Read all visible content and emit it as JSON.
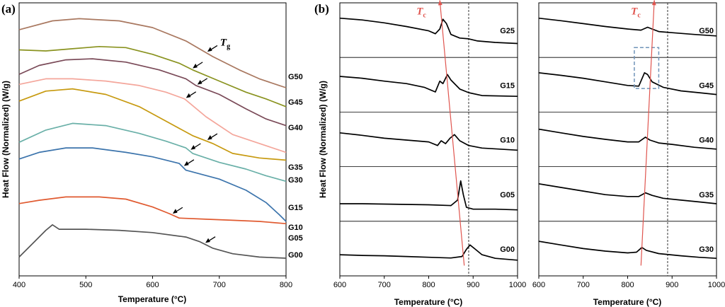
{
  "panel_a_label": "(a)",
  "panel_b_label": "(b)",
  "panel_b_ylabel": "Heat Flow (Normalized) (W/g)",
  "chart_data": [
    {
      "type": "line",
      "title": "(a)",
      "xlabel": "Temperature (°C)",
      "ylabel": "Heat Flow (Normalized) (W/g)",
      "xlim": [
        400,
        800
      ],
      "xticks": [
        400,
        500,
        600,
        700,
        800
      ],
      "ylim": [
        0,
        10
      ],
      "yticks_visible": false,
      "series": [
        {
          "name": "G50",
          "color": "#a97860",
          "tg_annotation": "T",
          "tg_subscript": "g",
          "tg_x": 680,
          "points": [
            [
              400,
              8.5
            ],
            [
              450,
              8.9
            ],
            [
              490,
              9.0
            ],
            [
              550,
              8.9
            ],
            [
              600,
              8.6
            ],
            [
              650,
              8.0
            ],
            [
              690,
              7.3
            ],
            [
              730,
              6.7
            ],
            [
              760,
              6.3
            ],
            [
              790,
              6.0
            ],
            [
              800,
              5.9
            ]
          ]
        },
        {
          "name": "G45",
          "color": "#8a9320",
          "tg_x": 658,
          "points": [
            [
              400,
              7.6
            ],
            [
              440,
              7.55
            ],
            [
              480,
              7.65
            ],
            [
              520,
              7.75
            ],
            [
              560,
              7.7
            ],
            [
              600,
              7.4
            ],
            [
              640,
              7.0
            ],
            [
              660,
              6.7
            ],
            [
              700,
              6.2
            ],
            [
              740,
              5.7
            ],
            [
              770,
              5.4
            ],
            [
              800,
              5.05
            ]
          ]
        },
        {
          "name": "G40",
          "color": "#7a4a58",
          "tg_x": 665,
          "points": [
            [
              400,
              6.5
            ],
            [
              430,
              6.9
            ],
            [
              470,
              7.15
            ],
            [
              510,
              7.2
            ],
            [
              560,
              7.05
            ],
            [
              610,
              6.7
            ],
            [
              650,
              6.3
            ],
            [
              665,
              6.0
            ],
            [
              700,
              5.6
            ],
            [
              740,
              4.95
            ],
            [
              770,
              4.5
            ],
            [
              800,
              4.2
            ]
          ]
        },
        {
          "name": "G35",
          "color": "#f4a69b",
          "tg_x": 648,
          "points": [
            [
              400,
              6.05
            ],
            [
              440,
              6.3
            ],
            [
              480,
              6.3
            ],
            [
              530,
              6.2
            ],
            [
              580,
              6.0
            ],
            [
              620,
              5.7
            ],
            [
              648,
              5.4
            ],
            [
              680,
              4.6
            ],
            [
              720,
              3.8
            ],
            [
              760,
              3.4
            ],
            [
              800,
              3.0
            ]
          ]
        },
        {
          "name": "G30",
          "color": "#c79a10",
          "tg_x": 680,
          "points": [
            [
              400,
              5.3
            ],
            [
              440,
              5.75
            ],
            [
              480,
              5.85
            ],
            [
              530,
              5.6
            ],
            [
              580,
              5.05
            ],
            [
              620,
              4.4
            ],
            [
              660,
              3.75
            ],
            [
              690,
              3.4
            ],
            [
              720,
              2.95
            ],
            [
              760,
              2.75
            ],
            [
              800,
              2.65
            ]
          ]
        },
        {
          "name": "G15",
          "color": "#6ab0a8",
          "tg_x": 655,
          "points": [
            [
              400,
              3.45
            ],
            [
              440,
              4.0
            ],
            [
              480,
              4.3
            ],
            [
              530,
              4.2
            ],
            [
              580,
              3.85
            ],
            [
              620,
              3.5
            ],
            [
              650,
              3.2
            ],
            [
              660,
              2.95
            ],
            [
              700,
              2.55
            ],
            [
              740,
              2.25
            ],
            [
              770,
              1.95
            ],
            [
              800,
              1.7
            ]
          ]
        },
        {
          "name": "G10",
          "color": "#3c74ac",
          "tg_x": 645,
          "points": [
            [
              400,
              2.7
            ],
            [
              430,
              3.0
            ],
            [
              470,
              3.2
            ],
            [
              510,
              3.2
            ],
            [
              560,
              3.0
            ],
            [
              600,
              2.8
            ],
            [
              640,
              2.5
            ],
            [
              650,
              2.2
            ],
            [
              700,
              1.8
            ],
            [
              740,
              1.3
            ],
            [
              770,
              0.75
            ],
            [
              790,
              0.2
            ],
            [
              800,
              -0.1
            ]
          ]
        },
        {
          "name": "G05",
          "color": "#e05a30",
          "tg_x": 628,
          "points": [
            [
              400,
              0.7
            ],
            [
              430,
              0.85
            ],
            [
              470,
              1.0
            ],
            [
              520,
              1.0
            ],
            [
              560,
              0.9
            ],
            [
              600,
              0.55
            ],
            [
              625,
              0.25
            ],
            [
              640,
              0.05
            ],
            [
              680,
              0.0
            ],
            [
              720,
              -0.05
            ],
            [
              760,
              -0.1
            ],
            [
              800,
              -0.2
            ]
          ]
        },
        {
          "name": "G00",
          "color": "#555555",
          "tg_x": 677,
          "points": [
            [
              400,
              -1.7
            ],
            [
              420,
              -1.1
            ],
            [
              440,
              -0.5
            ],
            [
              450,
              -0.25
            ],
            [
              460,
              -0.45
            ],
            [
              500,
              -0.45
            ],
            [
              550,
              -0.5
            ],
            [
              600,
              -0.6
            ],
            [
              650,
              -0.8
            ],
            [
              670,
              -1.0
            ],
            [
              690,
              -1.3
            ],
            [
              720,
              -1.55
            ],
            [
              760,
              -1.7
            ],
            [
              800,
              -1.75
            ]
          ]
        }
      ]
    },
    {
      "type": "line",
      "title": "(b) left",
      "xlabel": "Temperature (°C)",
      "xlim": [
        600,
        1000
      ],
      "xticks": [
        600,
        700,
        800,
        900,
        1000
      ],
      "tc_label": "T",
      "tc_subscript": "c",
      "tc_line": [
        [
          880,
          -0.2
        ],
        [
          825,
          5.1
        ]
      ],
      "dashed_line_x": 890,
      "series": [
        {
          "name": "G25",
          "points": [
            [
              600,
              0.85
            ],
            [
              650,
              0.8
            ],
            [
              700,
              0.72
            ],
            [
              750,
              0.62
            ],
            [
              800,
              0.5
            ],
            [
              815,
              0.42
            ],
            [
              825,
              0.55
            ],
            [
              832,
              0.82
            ],
            [
              840,
              0.7
            ],
            [
              850,
              0.4
            ],
            [
              870,
              0.3
            ],
            [
              890,
              0.28
            ],
            [
              910,
              0.22
            ],
            [
              950,
              0.18
            ],
            [
              1000,
              0.15
            ]
          ]
        },
        {
          "name": "G15",
          "points": [
            [
              600,
              0.75
            ],
            [
              650,
              0.7
            ],
            [
              700,
              0.62
            ],
            [
              750,
              0.55
            ],
            [
              790,
              0.45
            ],
            [
              815,
              0.32
            ],
            [
              825,
              0.62
            ],
            [
              832,
              0.55
            ],
            [
              842,
              0.8
            ],
            [
              850,
              0.65
            ],
            [
              870,
              0.4
            ],
            [
              890,
              0.3
            ],
            [
              920,
              0.22
            ],
            [
              1000,
              0.2
            ]
          ]
        },
        {
          "name": "G10",
          "points": [
            [
              600,
              0.7
            ],
            [
              650,
              0.63
            ],
            [
              700,
              0.55
            ],
            [
              750,
              0.5
            ],
            [
              800,
              0.45
            ],
            [
              820,
              0.35
            ],
            [
              828,
              0.48
            ],
            [
              838,
              0.4
            ],
            [
              848,
              0.55
            ],
            [
              858,
              0.65
            ],
            [
              870,
              0.48
            ],
            [
              890,
              0.35
            ],
            [
              920,
              0.28
            ],
            [
              960,
              0.25
            ],
            [
              1000,
              0.22
            ]
          ]
        },
        {
          "name": "G05",
          "points": [
            [
              600,
              0.25
            ],
            [
              650,
              0.25
            ],
            [
              700,
              0.24
            ],
            [
              750,
              0.23
            ],
            [
              800,
              0.22
            ],
            [
              850,
              0.2
            ],
            [
              865,
              0.35
            ],
            [
              872,
              0.88
            ],
            [
              878,
              0.5
            ],
            [
              885,
              0.15
            ],
            [
              900,
              0.1
            ],
            [
              950,
              0.1
            ],
            [
              1000,
              0.08
            ]
          ]
        },
        {
          "name": "G00",
          "points": [
            [
              600,
              0.35
            ],
            [
              650,
              0.33
            ],
            [
              700,
              0.32
            ],
            [
              750,
              0.3
            ],
            [
              800,
              0.28
            ],
            [
              850,
              0.26
            ],
            [
              875,
              0.3
            ],
            [
              885,
              0.5
            ],
            [
              893,
              0.62
            ],
            [
              905,
              0.5
            ],
            [
              920,
              0.35
            ],
            [
              950,
              0.25
            ],
            [
              1000,
              0.2
            ]
          ]
        }
      ]
    },
    {
      "type": "line",
      "title": "(b) right",
      "xlabel": "Temperature (°C)",
      "xlim": [
        600,
        1000
      ],
      "xticks": [
        600,
        700,
        800,
        900,
        1000
      ],
      "tc_label": "T",
      "tc_subscript": "c",
      "tc_line": [
        [
          830,
          -0.2
        ],
        [
          860,
          5.1
        ]
      ],
      "dashed_line_x": 890,
      "highlight_box_x": [
        815,
        870
      ],
      "series": [
        {
          "name": "G50",
          "points": [
            [
              600,
              0.85
            ],
            [
              650,
              0.78
            ],
            [
              700,
              0.7
            ],
            [
              750,
              0.62
            ],
            [
              800,
              0.55
            ],
            [
              830,
              0.52
            ],
            [
              845,
              0.6
            ],
            [
              855,
              0.55
            ],
            [
              870,
              0.48
            ],
            [
              900,
              0.45
            ],
            [
              950,
              0.4
            ],
            [
              1000,
              0.36
            ]
          ]
        },
        {
          "name": "G45",
          "points": [
            [
              600,
              0.85
            ],
            [
              650,
              0.78
            ],
            [
              700,
              0.7
            ],
            [
              750,
              0.6
            ],
            [
              800,
              0.5
            ],
            [
              825,
              0.48
            ],
            [
              838,
              0.85
            ],
            [
              845,
              0.8
            ],
            [
              855,
              0.6
            ],
            [
              880,
              0.45
            ],
            [
              920,
              0.35
            ],
            [
              960,
              0.3
            ],
            [
              1000,
              0.25
            ]
          ]
        },
        {
          "name": "G40",
          "points": [
            [
              600,
              0.8
            ],
            [
              650,
              0.7
            ],
            [
              700,
              0.6
            ],
            [
              750,
              0.52
            ],
            [
              800,
              0.45
            ],
            [
              825,
              0.45
            ],
            [
              840,
              0.58
            ],
            [
              850,
              0.5
            ],
            [
              870,
              0.42
            ],
            [
              900,
              0.38
            ],
            [
              950,
              0.3
            ],
            [
              1000,
              0.25
            ]
          ]
        },
        {
          "name": "G35",
          "points": [
            [
              600,
              0.8
            ],
            [
              650,
              0.7
            ],
            [
              700,
              0.6
            ],
            [
              750,
              0.5
            ],
            [
              800,
              0.45
            ],
            [
              825,
              0.45
            ],
            [
              840,
              0.55
            ],
            [
              855,
              0.48
            ],
            [
              880,
              0.4
            ],
            [
              920,
              0.35
            ],
            [
              960,
              0.3
            ],
            [
              1000,
              0.25
            ]
          ]
        },
        {
          "name": "G30",
          "points": [
            [
              600,
              0.72
            ],
            [
              650,
              0.62
            ],
            [
              700,
              0.52
            ],
            [
              750,
              0.45
            ],
            [
              800,
              0.4
            ],
            [
              820,
              0.42
            ],
            [
              832,
              0.55
            ],
            [
              842,
              0.47
            ],
            [
              870,
              0.38
            ],
            [
              920,
              0.32
            ],
            [
              960,
              0.28
            ],
            [
              1000,
              0.25
            ]
          ]
        }
      ]
    }
  ]
}
